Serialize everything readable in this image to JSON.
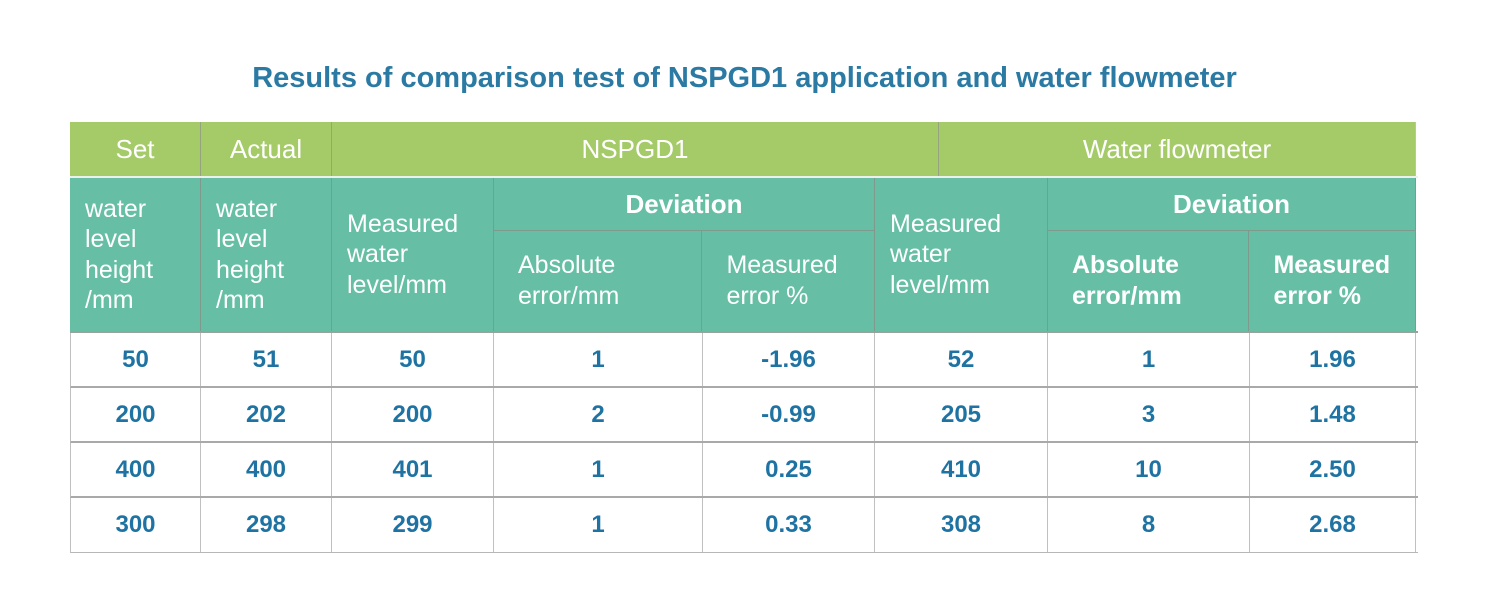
{
  "title": "Results of comparison test of NSPGD1 application and water flowmeter",
  "colors": {
    "green": "#a5cb69",
    "teal": "#66bfa4",
    "title_blue": "#2b7aa3",
    "data_blue": "#1f73a2"
  },
  "table": {
    "columns": {
      "set": {
        "top": "Set",
        "sub": "water\nlevel\nheight\n/mm"
      },
      "actual": {
        "top": "Actual",
        "sub": "water\nlevel\nheight\n/mm"
      },
      "nspgd1": {
        "top": "NSPGD1",
        "measured": "Measured\nwater\nlevel/mm",
        "deviation": "Deviation",
        "absolute_error": "Absolute\nerror/mm",
        "measured_error": "Measured\nerror %"
      },
      "water_flowmeter": {
        "top": "Water flowmeter",
        "measured": "Measured\nwater\nlevel/mm",
        "deviation": "Deviation",
        "absolute_error": "Absolute\nerror/mm",
        "measured_error": "Measured\nerror %"
      }
    },
    "rows": [
      [
        "50",
        "51",
        "50",
        "1",
        "-1.96",
        "52",
        "1",
        "1.96"
      ],
      [
        "200",
        "202",
        "200",
        "2",
        "-0.99",
        "205",
        "3",
        "1.48"
      ],
      [
        "400",
        "400",
        "401",
        "1",
        "0.25",
        "410",
        "10",
        "2.50"
      ],
      [
        "300",
        "298",
        "299",
        "1",
        "0.33",
        "308",
        "8",
        "2.68"
      ]
    ]
  },
  "chart_data": {
    "type": "table",
    "title": "Results of comparison test of NSPGD1 application and water flowmeter",
    "column_groups": [
      "Set",
      "Actual",
      "NSPGD1",
      "Water flowmeter"
    ],
    "columns": [
      "Set water level height /mm",
      "Actual water level height /mm",
      "NSPGD1 Measured water level/mm",
      "NSPGD1 Deviation Absolute error/mm",
      "NSPGD1 Deviation Measured error %",
      "Water flowmeter Measured water level/mm",
      "Water flowmeter Deviation Absolute error/mm",
      "Water flowmeter Deviation Measured error %"
    ],
    "rows": [
      [
        50,
        51,
        50,
        1,
        -1.96,
        52,
        1,
        1.96
      ],
      [
        200,
        202,
        200,
        2,
        -0.99,
        205,
        3,
        1.48
      ],
      [
        400,
        400,
        401,
        1,
        0.25,
        410,
        10,
        2.5
      ],
      [
        300,
        298,
        299,
        1,
        0.33,
        308,
        8,
        2.68
      ]
    ]
  }
}
